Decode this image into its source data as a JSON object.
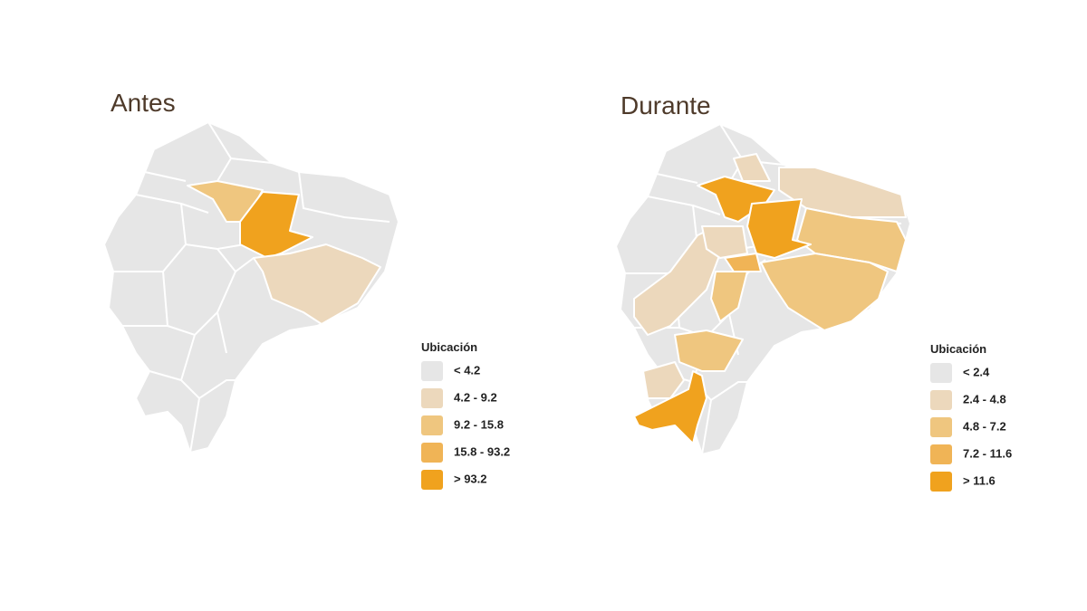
{
  "maps": [
    {
      "title": "Antes",
      "legend": {
        "title": "Ubicación",
        "items": [
          {
            "label": "< 4.2",
            "color": "#e6e6e6"
          },
          {
            "label": "4.2 - 9.2",
            "color": "#ecd8bc"
          },
          {
            "label": "9.2 - 15.8",
            "color": "#efc67f"
          },
          {
            "label": "15.8 - 93.2",
            "color": "#f0b456"
          },
          {
            "label": "> 93.2",
            "color": "#f0a21e"
          }
        ]
      }
    },
    {
      "title": "Durante",
      "legend": {
        "title": "Ubicación",
        "items": [
          {
            "label": "< 2.4",
            "color": "#e6e6e6"
          },
          {
            "label": "2.4 - 4.8",
            "color": "#ecd8bc"
          },
          {
            "label": "4.8 - 7.2",
            "color": "#efc67f"
          },
          {
            "label": "7.2 - 11.6",
            "color": "#f0b456"
          },
          {
            "label": "> 11.6",
            "color": "#f0a21e"
          }
        ]
      }
    }
  ]
}
